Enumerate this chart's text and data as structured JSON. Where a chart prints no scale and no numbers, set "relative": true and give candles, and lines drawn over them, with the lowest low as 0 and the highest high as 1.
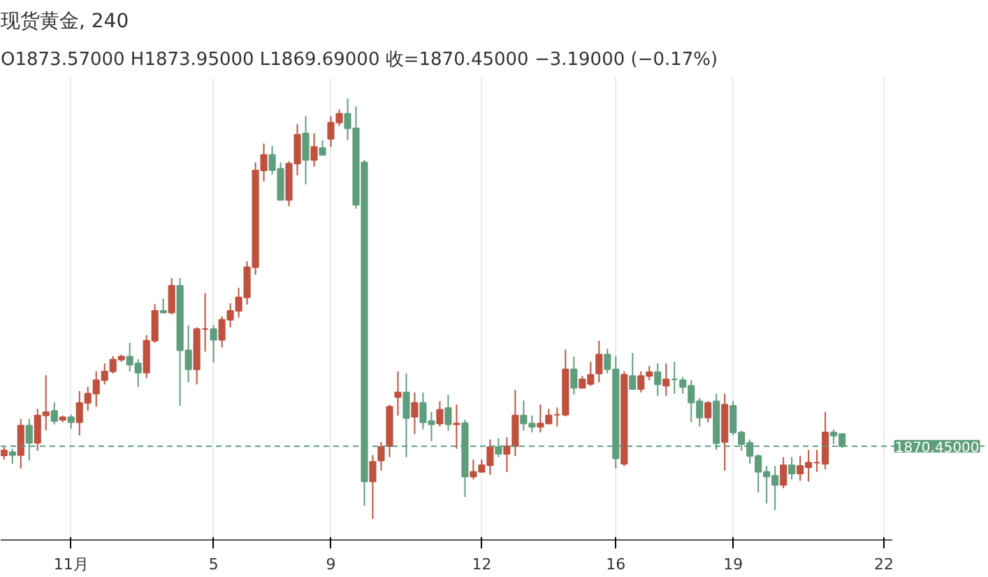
{
  "chart_data": {
    "type": "candlestick",
    "title": "现货黄金, 240",
    "subtitle": "O1873.57000  H1873.95000  L1869.69000  收=1870.45000  −3.19000 (−0.17%)",
    "relative": true,
    "grid": "x",
    "categories": [
      null,
      null,
      null,
      null,
      null,
      null,
      null,
      null,
      "11月",
      null,
      null,
      null,
      null,
      null,
      null,
      null,
      null,
      null,
      null,
      null,
      null,
      null,
      null,
      null,
      null,
      "5",
      null,
      null,
      null,
      null,
      null,
      null,
      null,
      null,
      null,
      null,
      null,
      null,
      null,
      "9",
      null,
      null,
      null,
      null,
      null,
      null,
      null,
      null,
      null,
      null,
      null,
      null,
      null,
      null,
      null,
      null,
      null,
      "12",
      null,
      null,
      null,
      null,
      null,
      null,
      null,
      null,
      null,
      null,
      null,
      null,
      null,
      null,
      null,
      "16",
      null,
      null,
      null,
      null,
      null,
      null,
      null,
      null,
      null,
      null,
      null,
      null,
      null,
      "19",
      null,
      null,
      null,
      null,
      null,
      null,
      null,
      null,
      null,
      null,
      null,
      null,
      null,
      null,
      null,
      null,
      null,
      "22"
    ],
    "ohlc": [
      [
        0.151,
        0.173,
        0.141,
        0.163
      ],
      [
        0.159,
        0.167,
        0.131,
        0.152
      ],
      [
        0.152,
        0.238,
        0.12,
        0.222
      ],
      [
        0.222,
        0.238,
        0.139,
        0.181
      ],
      [
        0.181,
        0.262,
        0.162,
        0.246
      ],
      [
        0.246,
        0.342,
        0.211,
        0.254
      ],
      [
        0.257,
        0.277,
        0.225,
        0.233
      ],
      [
        0.236,
        0.246,
        0.23,
        0.242
      ],
      [
        0.242,
        0.248,
        0.215,
        0.23
      ],
      [
        0.23,
        0.304,
        0.199,
        0.276
      ],
      [
        0.276,
        0.314,
        0.257,
        0.298
      ],
      [
        0.298,
        0.351,
        0.267,
        0.33
      ],
      [
        0.33,
        0.37,
        0.32,
        0.351
      ],
      [
        0.351,
        0.387,
        0.346,
        0.379
      ],
      [
        0.379,
        0.391,
        0.374,
        0.386
      ],
      [
        0.386,
        0.419,
        0.351,
        0.367
      ],
      [
        0.37,
        0.38,
        0.314,
        0.348
      ],
      [
        0.348,
        0.437,
        0.335,
        0.424
      ],
      [
        0.424,
        0.511,
        0.419,
        0.495
      ],
      [
        0.495,
        0.524,
        0.489,
        0.491
      ],
      [
        0.491,
        0.573,
        0.487,
        0.555
      ],
      [
        0.555,
        0.573,
        0.269,
        0.401
      ],
      [
        0.401,
        0.461,
        0.325,
        0.356
      ],
      [
        0.356,
        0.456,
        0.32,
        0.452
      ],
      [
        0.452,
        0.537,
        0.398,
        0.452
      ],
      [
        0.452,
        0.461,
        0.372,
        0.426
      ],
      [
        0.426,
        0.482,
        0.408,
        0.474
      ],
      [
        0.474,
        0.513,
        0.456,
        0.495
      ],
      [
        0.495,
        0.55,
        0.479,
        0.527
      ],
      [
        0.527,
        0.613,
        0.51,
        0.599
      ],
      [
        0.599,
        0.848,
        0.581,
        0.829
      ],
      [
        0.829,
        0.893,
        0.803,
        0.866
      ],
      [
        0.866,
        0.887,
        0.82,
        0.83
      ],
      [
        0.833,
        0.848,
        0.759,
        0.759
      ],
      [
        0.759,
        0.851,
        0.744,
        0.845
      ],
      [
        0.845,
        0.939,
        0.817,
        0.914
      ],
      [
        0.917,
        0.958,
        0.796,
        0.854
      ],
      [
        0.854,
        0.917,
        0.838,
        0.885
      ],
      [
        0.882,
        0.901,
        0.864,
        0.866
      ],
      [
        0.904,
        0.958,
        0.885,
        0.943
      ],
      [
        0.943,
        0.974,
        0.935,
        0.964
      ],
      [
        0.964,
        1.0,
        0.901,
        0.929
      ],
      [
        0.929,
        0.981,
        0.738,
        0.747
      ],
      [
        0.848,
        0.854,
        0.031,
        0.089
      ],
      [
        0.089,
        0.152,
        0.0,
        0.136
      ],
      [
        0.139,
        0.183,
        0.115,
        0.171
      ],
      [
        0.173,
        0.272,
        0.147,
        0.267
      ],
      [
        0.29,
        0.351,
        0.246,
        0.301
      ],
      [
        0.301,
        0.346,
        0.147,
        0.24
      ],
      [
        0.243,
        0.301,
        0.202,
        0.276
      ],
      [
        0.276,
        0.301,
        0.213,
        0.23
      ],
      [
        0.233,
        0.255,
        0.185,
        0.225
      ],
      [
        0.227,
        0.28,
        0.22,
        0.26
      ],
      [
        0.264,
        0.295,
        0.21,
        0.225
      ],
      [
        0.225,
        0.272,
        0.167,
        0.227
      ],
      [
        0.228,
        0.236,
        0.052,
        0.101
      ],
      [
        0.101,
        0.141,
        0.094,
        0.112
      ],
      [
        0.112,
        0.141,
        0.11,
        0.128
      ],
      [
        0.128,
        0.189,
        0.105,
        0.171
      ],
      [
        0.171,
        0.192,
        0.147,
        0.155
      ],
      [
        0.155,
        0.194,
        0.112,
        0.173
      ],
      [
        0.173,
        0.307,
        0.15,
        0.246
      ],
      [
        0.246,
        0.282,
        0.21,
        0.227
      ],
      [
        0.227,
        0.246,
        0.206,
        0.219
      ],
      [
        0.219,
        0.272,
        0.206,
        0.227
      ],
      [
        0.227,
        0.262,
        0.225,
        0.246
      ],
      [
        0.248,
        0.265,
        0.22,
        0.248
      ],
      [
        0.248,
        0.403,
        0.244,
        0.356
      ],
      [
        0.356,
        0.386,
        0.296,
        0.312
      ],
      [
        0.312,
        0.34,
        0.311,
        0.332
      ],
      [
        0.321,
        0.374,
        0.317,
        0.343
      ],
      [
        0.346,
        0.424,
        0.325,
        0.391
      ],
      [
        0.391,
        0.405,
        0.346,
        0.356
      ],
      [
        0.356,
        0.387,
        0.12,
        0.144
      ],
      [
        0.131,
        0.351,
        0.126,
        0.343
      ],
      [
        0.34,
        0.395,
        0.307,
        0.309
      ],
      [
        0.309,
        0.351,
        0.301,
        0.34
      ],
      [
        0.34,
        0.364,
        0.33,
        0.349
      ],
      [
        0.349,
        0.37,
        0.293,
        0.32
      ],
      [
        0.317,
        0.37,
        0.293,
        0.332
      ],
      [
        0.332,
        0.374,
        0.298,
        0.332
      ],
      [
        0.33,
        0.338,
        0.298,
        0.314
      ],
      [
        0.317,
        0.33,
        0.23,
        0.277
      ],
      [
        0.28,
        0.288,
        0.22,
        0.241
      ],
      [
        0.241,
        0.28,
        0.23,
        0.276
      ],
      [
        0.28,
        0.298,
        0.164,
        0.18
      ],
      [
        0.183,
        0.298,
        0.115,
        0.272
      ],
      [
        0.269,
        0.28,
        0.199,
        0.206
      ],
      [
        0.206,
        0.21,
        0.162,
        0.178
      ],
      [
        0.181,
        0.189,
        0.131,
        0.15
      ],
      [
        0.15,
        0.154,
        0.063,
        0.112
      ],
      [
        0.112,
        0.126,
        0.037,
        0.101
      ],
      [
        0.103,
        0.126,
        0.021,
        0.081
      ],
      [
        0.081,
        0.147,
        0.073,
        0.128
      ],
      [
        0.128,
        0.147,
        0.094,
        0.108
      ],
      [
        0.108,
        0.15,
        0.091,
        0.126
      ],
      [
        0.123,
        0.164,
        0.089,
        0.134
      ],
      [
        0.134,
        0.164,
        0.112,
        0.134
      ],
      [
        0.131,
        0.255,
        0.118,
        0.206
      ],
      [
        0.206,
        0.213,
        0.178,
        0.198
      ],
      [
        0.202,
        0.204,
        0.169,
        0.173
      ],
      null,
      null,
      null,
      null,
      null
    ],
    "colors": [
      "#c0513f",
      "#5f9e7d",
      "#c0513f",
      "#5f9e7d",
      "#c0513f",
      "#c0513f",
      "#5f9e7d",
      "#c0513f",
      "#5f9e7d",
      "#c0513f",
      "#c0513f",
      "#c0513f",
      "#c0513f",
      "#c0513f",
      "#c0513f",
      "#5f9e7d",
      "#5f9e7d",
      "#c0513f",
      "#c0513f",
      "#5f9e7d",
      "#c0513f",
      "#5f9e7d",
      "#5f9e7d",
      "#c0513f",
      "#c0513f",
      "#5f9e7d",
      "#c0513f",
      "#c0513f",
      "#c0513f",
      "#c0513f",
      "#c0513f",
      "#c0513f",
      "#5f9e7d",
      "#5f9e7d",
      "#c0513f",
      "#c0513f",
      "#5f9e7d",
      "#c0513f",
      "#5f9e7d",
      "#c0513f",
      "#c0513f",
      "#5f9e7d",
      "#5f9e7d",
      "#5f9e7d",
      "#c0513f",
      "#c0513f",
      "#c0513f",
      "#c0513f",
      "#5f9e7d",
      "#c0513f",
      "#5f9e7d",
      "#5f9e7d",
      "#c0513f",
      "#5f9e7d",
      "#c0513f",
      "#5f9e7d",
      "#c0513f",
      "#c0513f",
      "#c0513f",
      "#5f9e7d",
      "#c0513f",
      "#c0513f",
      "#5f9e7d",
      "#5f9e7d",
      "#c0513f",
      "#c0513f",
      "#c0513f",
      "#c0513f",
      "#5f9e7d",
      "#c0513f",
      "#c0513f",
      "#c0513f",
      "#5f9e7d",
      "#5f9e7d",
      "#c0513f",
      "#5f9e7d",
      "#c0513f",
      "#c0513f",
      "#5f9e7d",
      "#c0513f",
      "#5f9e7d",
      "#5f9e7d",
      "#5f9e7d",
      "#5f9e7d",
      "#c0513f",
      "#5f9e7d",
      "#c0513f",
      "#5f9e7d",
      "#5f9e7d",
      "#5f9e7d",
      "#5f9e7d",
      "#5f9e7d",
      "#5f9e7d",
      "#c0513f",
      "#5f9e7d",
      "#c0513f",
      "#c0513f",
      "#c0513f",
      "#c0513f",
      "#5f9e7d",
      "#5f9e7d",
      null,
      null,
      null,
      null,
      null
    ],
    "ref_lines": [
      {
        "axis": "y",
        "value": 0.173,
        "color": "#5f9e7d",
        "line_style": "dashed"
      }
    ],
    "annotations": [
      {
        "text": "1870.45000",
        "y": 0.173
      }
    ]
  }
}
